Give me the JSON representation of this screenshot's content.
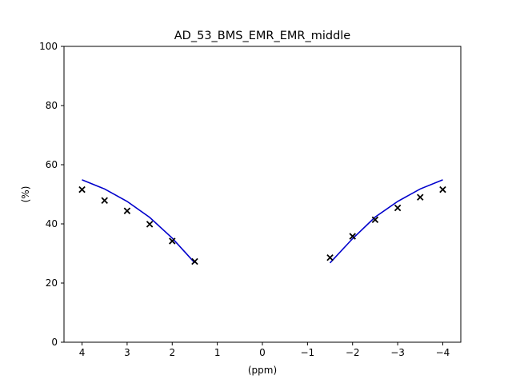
{
  "chart_data": {
    "type": "line",
    "title": "AD_53_BMS_EMR_EMR_middle",
    "xlabel": "(ppm)",
    "ylabel": "(%)",
    "xlim": [
      4.4,
      -4.4
    ],
    "ylim": [
      0,
      100
    ],
    "x_axis_reversed": true,
    "grid": false,
    "legend": "none",
    "xticks": [
      4,
      3,
      2,
      1,
      0,
      -1,
      -2,
      -3,
      -4
    ],
    "xtick_labels": [
      "4",
      "3",
      "2",
      "1",
      "0",
      "−1",
      "−2",
      "−3",
      "−4"
    ],
    "yticks": [
      0,
      20,
      40,
      60,
      80,
      100
    ],
    "ytick_labels": [
      "0",
      "20",
      "40",
      "60",
      "80",
      "100"
    ],
    "series": [
      {
        "kind": "line",
        "color": "#0000cc",
        "segments": [
          {
            "x": [
              4,
              3.5,
              3,
              2.5,
              2,
              1.5
            ],
            "y": [
              54.9,
              51.8,
              47.6,
              42.2,
              35.2,
              26.8
            ]
          },
          {
            "x": [
              -1.5,
              -2,
              -2.5,
              -3,
              -3.5,
              -4
            ],
            "y": [
              26.8,
              35.0,
              42.3,
              47.6,
              51.8,
              54.9
            ]
          }
        ]
      },
      {
        "kind": "scatter",
        "marker": "x",
        "color": "#000000",
        "x": [
          4,
          3.5,
          3,
          2.5,
          2,
          1.5,
          -1.5,
          -2,
          -2.5,
          -3,
          -3.5,
          -4
        ],
        "y": [
          51.6,
          47.9,
          44.4,
          39.9,
          34.2,
          27.3,
          28.6,
          35.8,
          41.4,
          45.4,
          49.0,
          51.6
        ]
      }
    ]
  }
}
